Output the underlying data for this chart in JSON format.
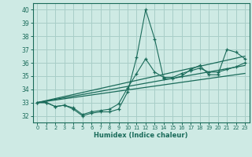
{
  "xlabel": "Humidex (Indice chaleur)",
  "bg_color": "#ceeae4",
  "grid_color": "#a8cec8",
  "line_color": "#1a6b5a",
  "xlim": [
    -0.5,
    23.5
  ],
  "ylim": [
    31.5,
    40.5
  ],
  "yticks": [
    32,
    33,
    34,
    35,
    36,
    37,
    38,
    39,
    40
  ],
  "xticks": [
    0,
    1,
    2,
    3,
    4,
    5,
    6,
    7,
    8,
    9,
    10,
    11,
    12,
    13,
    14,
    15,
    16,
    17,
    18,
    19,
    20,
    21,
    22,
    23
  ],
  "line1_x": [
    0,
    1,
    2,
    3,
    4,
    5,
    6,
    7,
    8,
    9,
    10,
    11,
    12,
    13,
    14,
    15,
    16,
    17,
    18,
    19,
    20,
    21,
    22,
    23
  ],
  "line1_y": [
    33.0,
    33.0,
    32.7,
    32.8,
    32.5,
    32.0,
    32.2,
    32.3,
    32.3,
    32.5,
    33.8,
    36.4,
    40.0,
    37.8,
    34.8,
    34.8,
    35.0,
    35.5,
    35.8,
    35.1,
    35.1,
    37.0,
    36.8,
    36.3
  ],
  "line2_x": [
    0,
    1,
    2,
    3,
    4,
    5,
    6,
    7,
    8,
    9,
    10,
    11,
    12,
    13,
    14,
    15,
    16,
    17,
    18,
    19,
    20,
    21,
    22,
    23
  ],
  "line2_y": [
    33.0,
    33.0,
    32.7,
    32.8,
    32.6,
    32.1,
    32.3,
    32.4,
    32.5,
    32.9,
    34.1,
    35.2,
    36.3,
    35.3,
    34.9,
    34.9,
    35.2,
    35.4,
    35.6,
    35.3,
    35.3,
    35.5,
    35.7,
    36.0
  ],
  "trend1_x": [
    0,
    23
  ],
  "trend1_y": [
    33.0,
    36.5
  ],
  "trend2_x": [
    0,
    23
  ],
  "trend2_y": [
    33.0,
    35.8
  ],
  "trend3_x": [
    0,
    23
  ],
  "trend3_y": [
    33.0,
    35.2
  ]
}
